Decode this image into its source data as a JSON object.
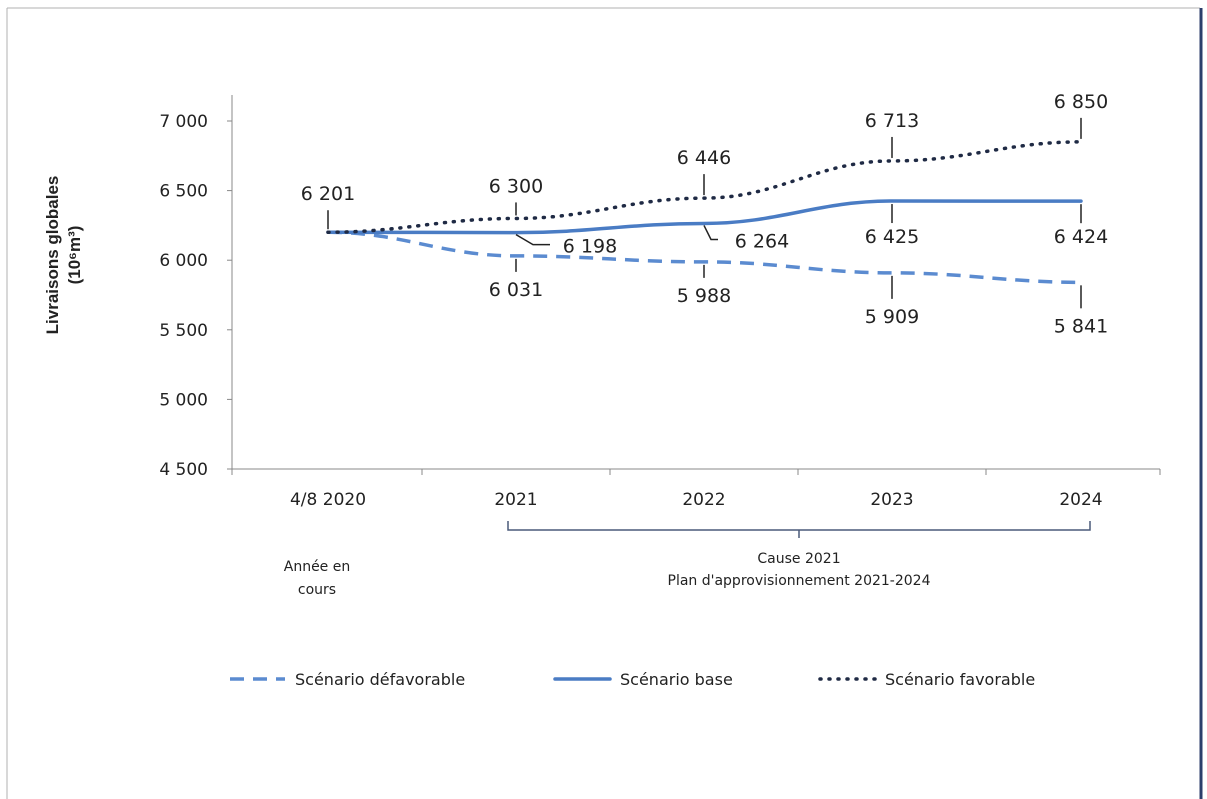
{
  "chart_data": {
    "type": "line",
    "categories": [
      "4/8 2020",
      "2021",
      "2022",
      "2023",
      "2024"
    ],
    "series": [
      {
        "name": "Scénario défavorable",
        "style": "dashed",
        "values": [
          6201,
          6031,
          5988,
          5909,
          5841
        ],
        "labels": [
          "",
          "6 031",
          "5 988",
          "5 909",
          "5 841"
        ]
      },
      {
        "name": "Scénario base",
        "style": "solid",
        "values": [
          6201,
          6198,
          6264,
          6425,
          6424
        ],
        "labels": [
          "",
          "6 198",
          "6 264",
          "6 425",
          "6 424"
        ]
      },
      {
        "name": "Scénario favorable",
        "style": "dotted",
        "values": [
          6201,
          6300,
          6446,
          6713,
          6850
        ],
        "labels": [
          "6 201",
          "6 300",
          "6 446",
          "6 713",
          "6 850"
        ]
      }
    ],
    "ylabel_main": "Livraisons globales",
    "ylabel_unit": "(10⁶m³)",
    "ylim": [
      4500,
      7000
    ],
    "yticks": [
      4500,
      5000,
      5500,
      6000,
      6500,
      7000
    ],
    "ytick_labels": [
      "4 500",
      "5 000",
      "5 500",
      "6 000",
      "6 500",
      "7 000"
    ],
    "notes": {
      "current_year": [
        "Année en",
        "cours"
      ],
      "bracket": [
        "Cause 2021",
        "Plan d'approvisionnement 2021-2024"
      ]
    },
    "legend_position": "bottom",
    "grid": false
  },
  "colors": {
    "blue_series": "#5b8bd0",
    "base_series": "#4a7cc4",
    "dark_series": "#1f2a44",
    "axis": "#888888",
    "border_right": "#2c3e6b"
  }
}
